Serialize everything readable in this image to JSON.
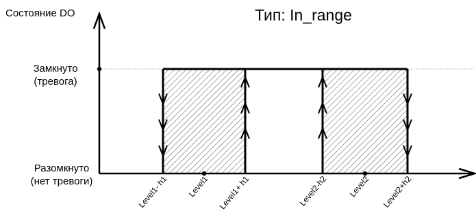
{
  "title": "Тип: In_range",
  "y_axis_label": "Состояние DO",
  "states": {
    "closed": {
      "line1": "Замкнуто",
      "line2": "(тревога)"
    },
    "open": {
      "line1": "Разомкнуто",
      "line2": "(нет тревоги)"
    }
  },
  "levels": [
    {
      "key": "l1m",
      "label": "Level1- h1"
    },
    {
      "key": "l1",
      "label": "Level1"
    },
    {
      "key": "l1p",
      "label": "Level1+ h1"
    },
    {
      "key": "l2m",
      "label": "Level2-h2"
    },
    {
      "key": "l2",
      "label": "Level2"
    },
    {
      "key": "l2p",
      "label": "Level2+h2"
    }
  ],
  "colors": {
    "line": "#000000",
    "hatch": "#555555",
    "guide": "#888888"
  }
}
